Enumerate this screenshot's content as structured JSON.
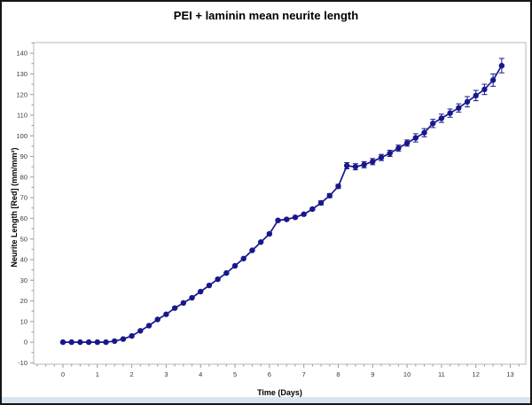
{
  "chart_data": {
    "type": "line",
    "title": "PEI + laminin mean neurite length",
    "xlabel": "Time (Days)",
    "ylabel": "Neurite Length [Red] (mm/mm²)",
    "xlim": [
      -0.85,
      13.45
    ],
    "ylim": [
      -10.7,
      145.2
    ],
    "x_ticks": [
      0,
      1,
      2,
      3,
      4,
      5,
      6,
      7,
      8,
      9,
      10,
      11,
      12,
      13
    ],
    "y_ticks": [
      -10,
      0,
      10,
      20,
      30,
      40,
      50,
      60,
      70,
      80,
      90,
      100,
      110,
      120,
      130,
      140
    ],
    "x_minor_step": 0.25,
    "y_minor_step": 5,
    "grid": false,
    "legend": "none",
    "marker": "circle",
    "series": [
      {
        "name": "PEI + laminin",
        "x": [
          0,
          0.25,
          0.5,
          0.75,
          1,
          1.25,
          1.5,
          1.75,
          2,
          2.25,
          2.5,
          2.75,
          3,
          3.25,
          3.5,
          3.75,
          4,
          4.25,
          4.5,
          4.75,
          5,
          5.25,
          5.5,
          5.75,
          6,
          6.25,
          6.5,
          6.75,
          7,
          7.25,
          7.5,
          7.75,
          8,
          8.25,
          8.5,
          8.75,
          9,
          9.25,
          9.5,
          9.75,
          10,
          10.25,
          10.5,
          10.75,
          11,
          11.25,
          11.5,
          11.75,
          12,
          12.25,
          12.5,
          12.75
        ],
        "y": [
          0,
          0,
          0,
          0,
          0,
          0,
          0.5,
          1.5,
          3,
          5.5,
          8,
          11,
          13.5,
          16.5,
          19,
          21.5,
          24.5,
          27.5,
          30.5,
          33.5,
          37,
          40.5,
          44.5,
          48.5,
          52.5,
          59,
          59.5,
          60.5,
          62,
          64.5,
          67.5,
          71,
          75.5,
          85.5,
          85,
          86,
          87.5,
          89.5,
          91.5,
          94,
          96.5,
          99,
          101.5,
          106,
          108.5,
          111,
          113.5,
          116.5,
          119.5,
          122.5,
          127,
          134
        ],
        "err": [
          0,
          0,
          0,
          0,
          0,
          0,
          0,
          0,
          0,
          0,
          0,
          0,
          0,
          0,
          0,
          0,
          0,
          0,
          0,
          0,
          0,
          0,
          0,
          0,
          0.5,
          0.5,
          0.5,
          0.5,
          0.5,
          0.5,
          1,
          1,
          1,
          1.5,
          1.5,
          1.5,
          1.5,
          1.5,
          1.5,
          1.5,
          1.5,
          2,
          2,
          2,
          2,
          2,
          2,
          2.5,
          2.5,
          2.5,
          3,
          3.5
        ]
      }
    ],
    "colors": {
      "line": "#18188c",
      "marker": "#18188c",
      "error_bar": "#18188c",
      "frame": "#b9b9b9",
      "tick": "#9a9a9a",
      "tick_label": "#3a3a3a",
      "background": "#ffffff",
      "bottom_strip": "#d9e2f0"
    }
  }
}
